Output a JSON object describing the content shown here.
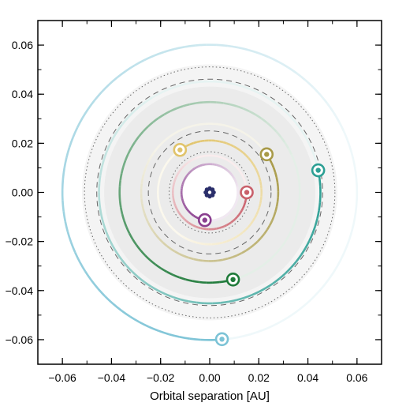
{
  "chart_data": {
    "type": "scatter",
    "title": "",
    "xlabel": "Orbital separation [AU]",
    "ylabel": "",
    "xlim": [
      -0.07,
      0.07
    ],
    "ylim": [
      -0.07,
      0.07
    ],
    "x_ticks": [
      -0.06,
      -0.04,
      -0.02,
      0.0,
      0.02,
      0.04,
      0.06
    ],
    "y_ticks": [
      -0.06,
      -0.04,
      -0.02,
      0.0,
      0.02,
      0.04,
      0.06
    ],
    "x_tick_labels": [
      "−0.06",
      "−0.04",
      "−0.02",
      "0.00",
      "0.02",
      "0.04",
      "0.06"
    ],
    "y_tick_labels": [
      "−0.06",
      "−0.04",
      "−0.02",
      "0.00",
      "0.02",
      "0.04",
      "0.06"
    ],
    "grid": false,
    "star": {
      "x": 0.0,
      "y": 0.0,
      "color": "#2b2f6b"
    },
    "habitable_zone": {
      "outer_band": [
        0.043,
        0.052
      ],
      "inner_gray_radius": 0.043,
      "inner_hole_radius": 0.011,
      "conservative_dashed": [
        0.025,
        0.046
      ],
      "optimistic_dotted": [
        0.0165,
        0.051
      ]
    },
    "planets": [
      {
        "label": "b",
        "radius": 0.015,
        "position": [
          0.0151,
          0.0
        ],
        "trail_degrees": 250,
        "color": "#c9606b"
      },
      {
        "label": "c",
        "radius": 0.0115,
        "position": [
          -0.002,
          -0.0113
        ],
        "trail_degrees": 250,
        "color": "#8a3f8f"
      },
      {
        "label": "d",
        "radius": 0.0211,
        "position": [
          -0.0121,
          0.0173
        ],
        "trail_degrees": 250,
        "color": "#e0c36a"
      },
      {
        "label": "e",
        "radius": 0.0279,
        "position": [
          0.0232,
          0.0155
        ],
        "trail_degrees": 250,
        "color": "#a89a48"
      },
      {
        "label": "f",
        "radius": 0.0367,
        "position": [
          0.0095,
          -0.0355
        ],
        "trail_degrees": 260,
        "color": "#1f7a3a"
      },
      {
        "label": "g",
        "radius": 0.0451,
        "position": [
          0.0442,
          0.009
        ],
        "trail_degrees": 250,
        "color": "#2c9f94"
      },
      {
        "label": "h",
        "radius": 0.06,
        "position": [
          0.005,
          -0.0598
        ],
        "trail_degrees": 250,
        "color": "#7cc3d6"
      }
    ]
  }
}
